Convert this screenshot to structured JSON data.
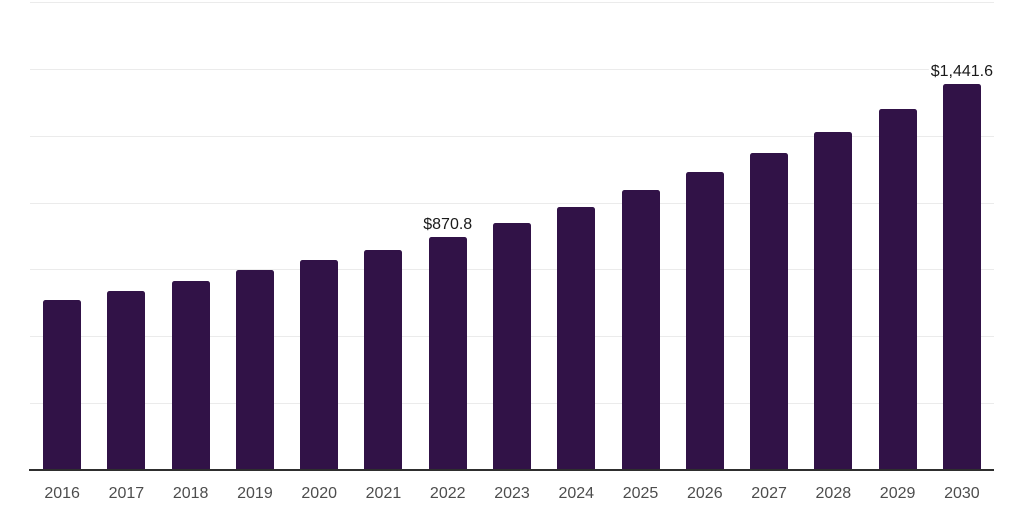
{
  "chart_data": {
    "type": "bar",
    "title": "",
    "xlabel": "",
    "ylabel": "",
    "categories": [
      "2016",
      "2017",
      "2018",
      "2019",
      "2020",
      "2021",
      "2022",
      "2023",
      "2024",
      "2025",
      "2026",
      "2027",
      "2028",
      "2029",
      "2030"
    ],
    "values": [
      637.0,
      669.1,
      706.0,
      747.3,
      786.5,
      822.1,
      870.8,
      923.5,
      983.0,
      1046.5,
      1113.9,
      1185.0,
      1263.0,
      1349.5,
      1441.6
    ],
    "data_labels": [
      "",
      "",
      "",
      "",
      "",
      "",
      "$870.8",
      "",
      "",
      "",
      "",
      "",
      "",
      "",
      "$1,441.6"
    ],
    "ylim": [
      0,
      1750
    ],
    "gridline_step": 250,
    "grid": true,
    "legend_position": "none",
    "bar_color": "#311247",
    "gridline_color": "#ebebeb",
    "axis_line_color": "#2e2e2e",
    "tick_label_color": "#4d4d4d",
    "data_label_color": "#1a1a1a"
  }
}
